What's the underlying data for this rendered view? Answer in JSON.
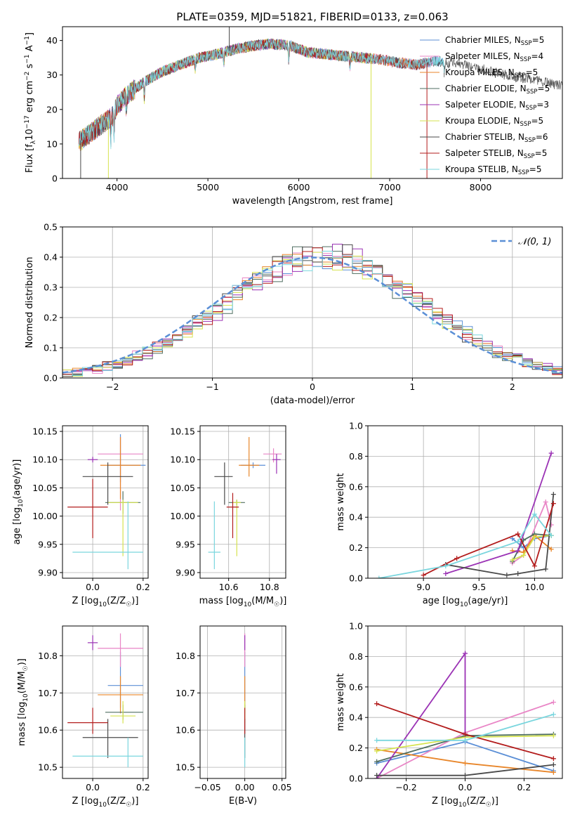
{
  "figure_title": "PLATE=0359, MJD=51821, FIBERID=0133, z=0.063",
  "colors": {
    "chabrier_miles": "#5b8fd6",
    "salpeter_miles": "#e985c6",
    "kroupa_miles": "#e8862a",
    "chabrier_elodie": "#4f6e60",
    "salpeter_elodie": "#9b33b5",
    "kroupa_elodie": "#d6e34f",
    "chabrier_stelib": "#4a4a4a",
    "salpeter_stelib": "#b31c1c",
    "kroupa_stelib": "#7ad6de",
    "gaussian": "#5b8fd6",
    "grid": "#b0b0b0"
  },
  "chart_data": [
    {
      "type": "line",
      "id": "spectrum",
      "xlabel": "wavelength [Angstrom, rest frame]",
      "ylabel": "Flux [f_λ10^-17 erg cm^-2 s^-1 A^-1]",
      "xlim": [
        3400,
        8900
      ],
      "ylim": [
        0,
        44
      ],
      "xticks": [
        "4000",
        "5000",
        "6000",
        "7000",
        "8000"
      ],
      "yticks": [
        "0",
        "10",
        "20",
        "30",
        "40"
      ],
      "grid": false,
      "legend": "top-right",
      "continuum": {
        "x": [
          3550,
          3700,
          3850,
          3950,
          4000,
          4100,
          4300,
          4500,
          4700,
          4900,
          5100,
          5300,
          5500,
          5700,
          5900,
          6100,
          6300,
          6500,
          6700,
          6900,
          7100,
          7300,
          7500,
          7700,
          7900,
          8100,
          8300,
          8500,
          8700,
          8900
        ],
        "y": [
          10,
          13,
          16,
          18,
          21,
          24,
          28,
          31,
          33,
          35,
          36,
          37.5,
          38.5,
          39,
          38.5,
          36.5,
          36,
          35.5,
          35,
          34.5,
          33.5,
          33,
          34,
          33.5,
          32.5,
          31,
          30,
          29,
          28,
          27
        ]
      },
      "series": [
        {
          "name": "Chabrier MILES, N_SSP=5",
          "color_key": "chabrier_miles",
          "xmax": 7600
        },
        {
          "name": "Salpeter MILES, N_SSP=4",
          "color_key": "salpeter_miles",
          "xmax": 7500
        },
        {
          "name": "Kroupa MILES, N_SSP=5",
          "color_key": "kroupa_miles",
          "xmax": 7400
        },
        {
          "name": "Chabrier ELODIE, N_SSP=5",
          "color_key": "chabrier_elodie",
          "xmax": 6800
        },
        {
          "name": "Salpeter ELODIE, N_SSP=3",
          "color_key": "salpeter_elodie",
          "xmax": 6800
        },
        {
          "name": "Kroupa ELODIE, N_SSP=5",
          "color_key": "kroupa_elodie",
          "xmax": 6800
        },
        {
          "name": "Chabrier STELIB, N_SSP=6",
          "color_key": "chabrier_stelib",
          "xmax": 8900
        },
        {
          "name": "Salpeter STELIB, N_SSP=5",
          "color_key": "salpeter_stelib",
          "xmax": 7400
        },
        {
          "name": "Kroupa STELIB, N_SSP=5",
          "color_key": "kroupa_stelib",
          "xmax": 7600
        }
      ]
    },
    {
      "type": "line",
      "id": "residual_hist",
      "xlabel": "(data-model)/error",
      "ylabel": "Normed distribution",
      "xlim": [
        -2.5,
        2.5
      ],
      "ylim": [
        0,
        0.5
      ],
      "xticks": [
        "−2",
        "−1",
        "0",
        "1",
        "2"
      ],
      "yticks": [
        "0.0",
        "0.1",
        "0.2",
        "0.3",
        "0.4",
        "0.5"
      ],
      "grid": true,
      "legend": "top-right",
      "legend_label": "𝒩(0, 1)",
      "bin_width": 0.1
    },
    {
      "type": "scatter",
      "id": "age_vs_Z",
      "xlabel": "Z [log10(Z/Z☉)]",
      "ylabel": "age [log10(age/yr)]",
      "xlim": [
        -0.12,
        0.22
      ],
      "ylim": [
        9.89,
        10.16
      ],
      "xticks": [
        "0.0",
        "0.2"
      ],
      "yticks": [
        "9.90",
        "9.95",
        "10.00",
        "10.05",
        "10.10",
        "10.15"
      ],
      "grid": true,
      "points": [
        {
          "color_key": "chabrier_miles",
          "x": 0.11,
          "xerr": [
            0.05,
            0.1
          ],
          "y": 10.09,
          "yerr": [
            0.03,
            0.055
          ]
        },
        {
          "color_key": "salpeter_miles",
          "x": 0.11,
          "xerr": [
            0.09,
            0.09
          ],
          "y": 10.11,
          "yerr": [
            0.1,
            0.03
          ]
        },
        {
          "color_key": "kroupa_miles",
          "x": 0.11,
          "xerr": [
            0.08,
            0.08
          ],
          "y": 10.09,
          "yerr": [
            0.06,
            0.05
          ]
        },
        {
          "color_key": "chabrier_elodie",
          "x": 0.12,
          "xerr": [
            0.07,
            0.07
          ],
          "y": 10.024,
          "yerr": [
            0.02,
            0.02
          ]
        },
        {
          "color_key": "salpeter_elodie",
          "x": 0.0,
          "xerr": [
            0.02,
            0.02
          ],
          "y": 10.1,
          "yerr": [
            0.005,
            0.005
          ]
        },
        {
          "color_key": "kroupa_elodie",
          "x": 0.12,
          "xerr": [
            0.06,
            0.06
          ],
          "y": 10.024,
          "yerr": [
            0.095,
            0.005
          ]
        },
        {
          "color_key": "chabrier_stelib",
          "x": 0.06,
          "xerr": [
            0.1,
            0.1
          ],
          "y": 10.07,
          "yerr": [
            0.05,
            0.025
          ]
        },
        {
          "color_key": "salpeter_stelib",
          "x": 0.0,
          "xerr": [
            0.1,
            0.06
          ],
          "y": 10.016,
          "yerr": [
            0.055,
            0.05
          ]
        },
        {
          "color_key": "kroupa_stelib",
          "x": 0.14,
          "xerr": [
            0.22,
            0.06
          ],
          "y": 9.936,
          "yerr": [
            0.03,
            0.09
          ]
        }
      ]
    },
    {
      "type": "scatter",
      "id": "age_vs_mass",
      "xlabel": "mass [log10(M/M☉)]",
      "ylabel": "",
      "xlim": [
        10.46,
        10.88
      ],
      "ylim": [
        9.89,
        10.16
      ],
      "xticks": [
        "10.6",
        "10.8"
      ],
      "yticks": [
        "9.90",
        "9.95",
        "10.00",
        "10.05",
        "10.10",
        "10.15"
      ],
      "grid": true,
      "points": [
        {
          "color_key": "chabrier_miles",
          "x": 10.72,
          "xerr": [
            0.06,
            0.06
          ],
          "y": 10.09,
          "yerr": [
            0.005,
            0.005
          ]
        },
        {
          "color_key": "salpeter_miles",
          "x": 10.82,
          "xerr": [
            0.05,
            0.04
          ],
          "y": 10.11,
          "yerr": [
            0.015,
            0.01
          ]
        },
        {
          "color_key": "kroupa_miles",
          "x": 10.7,
          "xerr": [
            0.05,
            0.05
          ],
          "y": 10.09,
          "yerr": [
            0.02,
            0.05
          ]
        },
        {
          "color_key": "chabrier_elodie",
          "x": 10.64,
          "xerr": [
            0.04,
            0.04
          ],
          "y": 10.024,
          "yerr": [
            0.005,
            0.005
          ]
        },
        {
          "color_key": "salpeter_elodie",
          "x": 10.835,
          "xerr": [
            0.02,
            0.02
          ],
          "y": 10.1,
          "yerr": [
            0.025,
            0.01
          ]
        },
        {
          "color_key": "kroupa_elodie",
          "x": 10.64,
          "xerr": [
            0.02,
            0.02
          ],
          "y": 10.024,
          "yerr": [
            0.095,
            0.005
          ]
        },
        {
          "color_key": "chabrier_stelib",
          "x": 10.58,
          "xerr": [
            0.05,
            0.04
          ],
          "y": 10.07,
          "yerr": [
            0.05,
            0.025
          ]
        },
        {
          "color_key": "salpeter_stelib",
          "x": 10.62,
          "xerr": [
            0.03,
            0.03
          ],
          "y": 10.016,
          "yerr": [
            0.055,
            0.025
          ]
        },
        {
          "color_key": "kroupa_stelib",
          "x": 10.53,
          "xerr": [
            0.03,
            0.03
          ],
          "y": 9.936,
          "yerr": [
            0.03,
            0.09
          ]
        }
      ]
    },
    {
      "type": "line",
      "id": "mass_weight_vs_age",
      "xlabel": "age  [log10(age/yr)]",
      "ylabel": "mass weight",
      "xlim": [
        8.5,
        10.25
      ],
      "ylim": [
        0,
        1
      ],
      "xticks": [
        "9.0",
        "9.5",
        "10.0"
      ],
      "yticks": [
        "0.0",
        "0.2",
        "0.4",
        "0.6",
        "0.8",
        "1.0"
      ],
      "grid": true,
      "series": [
        {
          "color_key": "chabrier_miles",
          "x": [
            9.8,
            9.9,
            10.0,
            10.15
          ],
          "y": [
            0.26,
            0.2,
            0.26,
            0.28
          ]
        },
        {
          "color_key": "salpeter_miles",
          "x": [
            9.8,
            9.9,
            10.1,
            10.15
          ],
          "y": [
            0.1,
            0.15,
            0.5,
            0.35
          ]
        },
        {
          "color_key": "kroupa_miles",
          "x": [
            9.8,
            9.9,
            10.0,
            10.15
          ],
          "y": [
            0.18,
            0.17,
            0.28,
            0.19
          ]
        },
        {
          "color_key": "chabrier_elodie",
          "x": [
            9.8,
            9.9,
            10.0,
            10.15
          ],
          "y": [
            0.11,
            0.25,
            0.29,
            0.28
          ]
        },
        {
          "color_key": "salpeter_elodie",
          "x": [
            9.2,
            9.85,
            10.15
          ],
          "y": [
            0.03,
            0.18,
            0.82
          ]
        },
        {
          "color_key": "kroupa_elodie",
          "x": [
            9.8,
            9.9,
            10.0,
            10.15
          ],
          "y": [
            0.12,
            0.15,
            0.27,
            0.28
          ]
        },
        {
          "color_key": "chabrier_stelib",
          "x": [
            9.2,
            9.75,
            9.85,
            10.1,
            10.17
          ],
          "y": [
            0.09,
            0.02,
            0.03,
            0.06,
            0.55
          ]
        },
        {
          "color_key": "salpeter_stelib",
          "x": [
            9.0,
            9.3,
            9.85,
            10.0,
            10.17
          ],
          "y": [
            0.02,
            0.13,
            0.29,
            0.08,
            0.49
          ]
        },
        {
          "color_key": "kroupa_stelib",
          "x": [
            8.6,
            9.2,
            9.85,
            10.0,
            10.15
          ],
          "y": [
            0.0,
            0.08,
            0.24,
            0.42,
            0.28
          ]
        }
      ]
    },
    {
      "type": "scatter",
      "id": "mass_vs_Z",
      "xlabel": "Z [log10(Z/Z☉)]",
      "ylabel": "mass [log10(M/M☉)]",
      "xlim": [
        -0.12,
        0.22
      ],
      "ylim": [
        10.47,
        10.88
      ],
      "xticks": [
        "0.0",
        "0.2"
      ],
      "yticks": [
        "10.5",
        "10.6",
        "10.7",
        "10.8"
      ],
      "grid": true,
      "points": [
        {
          "color_key": "chabrier_miles",
          "x": 0.11,
          "xerr": [
            0.05,
            0.09
          ],
          "y": 10.72,
          "yerr": [
            0.06,
            0.09
          ]
        },
        {
          "color_key": "salpeter_miles",
          "x": 0.11,
          "xerr": [
            0.09,
            0.09
          ],
          "y": 10.82,
          "yerr": [
            0.05,
            0.04
          ]
        },
        {
          "color_key": "kroupa_miles",
          "x": 0.11,
          "xerr": [
            0.09,
            0.09
          ],
          "y": 10.695,
          "yerr": [
            0.05,
            0.05
          ]
        },
        {
          "color_key": "chabrier_elodie",
          "x": 0.12,
          "xerr": [
            0.07,
            0.08
          ],
          "y": 10.648,
          "yerr": [
            0.02,
            0.02
          ]
        },
        {
          "color_key": "salpeter_elodie",
          "x": 0.0,
          "xerr": [
            0.02,
            0.02
          ],
          "y": 10.835,
          "yerr": [
            0.02,
            0.02
          ]
        },
        {
          "color_key": "kroupa_elodie",
          "x": 0.12,
          "xerr": [
            0.05,
            0.05
          ],
          "y": 10.638,
          "yerr": [
            0.02,
            0.04
          ]
        },
        {
          "color_key": "chabrier_stelib",
          "x": 0.06,
          "xerr": [
            0.1,
            0.12
          ],
          "y": 10.58,
          "yerr": [
            0.055,
            0.05
          ]
        },
        {
          "color_key": "salpeter_stelib",
          "x": 0.0,
          "xerr": [
            0.1,
            0.06
          ],
          "y": 10.62,
          "yerr": [
            0.03,
            0.04
          ]
        },
        {
          "color_key": "kroupa_stelib",
          "x": 0.14,
          "xerr": [
            0.22,
            0.06
          ],
          "y": 10.53,
          "yerr": [
            0.03,
            0.05
          ]
        }
      ]
    },
    {
      "type": "scatter",
      "id": "mass_vs_ebv",
      "xlabel": "E(B-V)",
      "ylabel": "",
      "xlim": [
        -0.06,
        0.055
      ],
      "ylim": [
        10.47,
        10.88
      ],
      "xticks": [
        "−0.05",
        "0.00",
        "0.05"
      ],
      "yticks": [
        "10.5",
        "10.6",
        "10.7",
        "10.8"
      ],
      "grid": true,
      "points": [
        {
          "color_key": "chabrier_miles",
          "x": 0.0,
          "y": 10.72,
          "yerr": [
            0.06,
            0.09
          ]
        },
        {
          "color_key": "salpeter_miles",
          "x": 0.0,
          "y": 10.82,
          "yerr": [
            0.05,
            0.04
          ]
        },
        {
          "color_key": "kroupa_miles",
          "x": 0.0,
          "y": 10.695,
          "yerr": [
            0.05,
            0.05
          ]
        },
        {
          "color_key": "chabrier_elodie",
          "x": 0.0,
          "y": 10.648,
          "yerr": [
            0.02,
            0.02
          ]
        },
        {
          "color_key": "salpeter_elodie",
          "x": 0.0,
          "y": 10.835,
          "yerr": [
            0.02,
            0.02
          ]
        },
        {
          "color_key": "kroupa_elodie",
          "x": 0.0,
          "y": 10.638,
          "yerr": [
            0.02,
            0.04
          ]
        },
        {
          "color_key": "chabrier_stelib",
          "x": 0.0,
          "y": 10.58,
          "yerr": [
            0.055,
            0.05
          ]
        },
        {
          "color_key": "salpeter_stelib",
          "x": 0.0,
          "y": 10.62,
          "yerr": [
            0.03,
            0.04
          ]
        },
        {
          "color_key": "kroupa_stelib",
          "x": 0.0,
          "y": 10.53,
          "yerr": [
            0.03,
            0.05
          ]
        }
      ]
    },
    {
      "type": "line",
      "id": "mass_weight_vs_Z",
      "xlabel": "Z [log10(Z/Z☉)]",
      "ylabel": "mass weight",
      "xlim": [
        -0.33,
        0.33
      ],
      "ylim": [
        0,
        1
      ],
      "xticks": [
        "−0.2",
        "0.0",
        "0.2"
      ],
      "yticks": [
        "0.0",
        "0.2",
        "0.4",
        "0.6",
        "0.8",
        "1.0"
      ],
      "grid": true,
      "series": [
        {
          "color_key": "chabrier_miles",
          "x": [
            -0.3,
            0.0,
            0.3
          ],
          "y": [
            0.1,
            0.24,
            0.05
          ]
        },
        {
          "color_key": "salpeter_miles",
          "x": [
            -0.3,
            0.0,
            0.3
          ],
          "y": [
            0.0,
            0.3,
            0.5
          ]
        },
        {
          "color_key": "kroupa_miles",
          "x": [
            -0.3,
            0.0,
            0.3
          ],
          "y": [
            0.19,
            0.1,
            0.04
          ]
        },
        {
          "color_key": "chabrier_elodie",
          "x": [
            -0.3,
            0.0,
            0.3
          ],
          "y": [
            0.11,
            0.28,
            0.29
          ]
        },
        {
          "color_key": "salpeter_elodie",
          "x": [
            -0.3,
            0.0,
            0.0
          ],
          "y": [
            0.0,
            0.82,
            0.29
          ]
        },
        {
          "color_key": "kroupa_elodie",
          "x": [
            -0.3,
            0.0,
            0.3
          ],
          "y": [
            0.18,
            0.27,
            0.28
          ]
        },
        {
          "color_key": "chabrier_stelib",
          "x": [
            -0.3,
            0.0,
            0.3
          ],
          "y": [
            0.02,
            0.02,
            0.09
          ]
        },
        {
          "color_key": "salpeter_stelib",
          "x": [
            -0.3,
            0.0,
            0.3
          ],
          "y": [
            0.49,
            0.29,
            0.13
          ]
        },
        {
          "color_key": "kroupa_stelib",
          "x": [
            -0.3,
            0.0,
            0.3
          ],
          "y": [
            0.25,
            0.25,
            0.42
          ]
        }
      ]
    }
  ]
}
